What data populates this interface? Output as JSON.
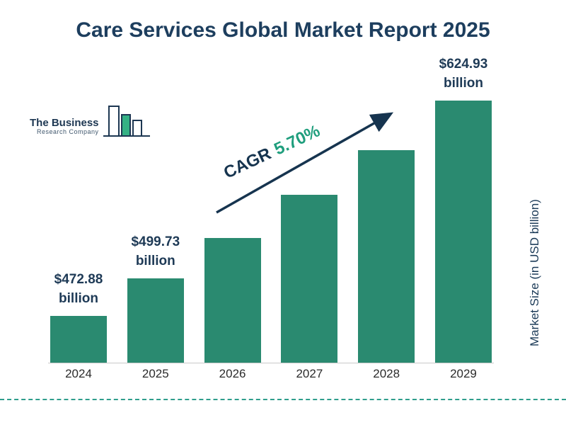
{
  "title": "Care Services Global Market Report 2025",
  "logo": {
    "line1": "The Business",
    "line2": "Research Company"
  },
  "cagr": {
    "prefix": "CAGR",
    "value": "5.70%"
  },
  "y_axis_label": "Market Size (in USD billion)",
  "colors": {
    "bar": "#2a8a70",
    "title": "#1d3e5e",
    "arrow": "#16344f",
    "cagr_value": "#1f9e7d",
    "dashed_line": "#2f9e8c",
    "logo_green": "#35b184"
  },
  "chart_data": {
    "type": "bar",
    "title": "Care Services Global Market Report 2025",
    "xlabel": "",
    "ylabel": "Market Size (in USD billion)",
    "legend": "none",
    "grid": false,
    "categories": [
      "2024",
      "2025",
      "2026",
      "2027",
      "2028",
      "2029"
    ],
    "values": [
      472.88,
      499.73,
      528.22,
      558.33,
      590.15,
      624.93
    ],
    "cagr_percent": 5.7,
    "bars": [
      {
        "year": "2024",
        "value": 472.88,
        "label1": "$472.88",
        "label2": "billion"
      },
      {
        "year": "2025",
        "value": 499.73,
        "label1": "$499.73",
        "label2": "billion"
      },
      {
        "year": "2026",
        "value": 528.22,
        "label1": "",
        "label2": ""
      },
      {
        "year": "2027",
        "value": 558.33,
        "label1": "",
        "label2": ""
      },
      {
        "year": "2028",
        "value": 590.15,
        "label1": "",
        "label2": ""
      },
      {
        "year": "2029",
        "value": 624.93,
        "label1": "$624.93",
        "label2": "billion"
      }
    ]
  }
}
